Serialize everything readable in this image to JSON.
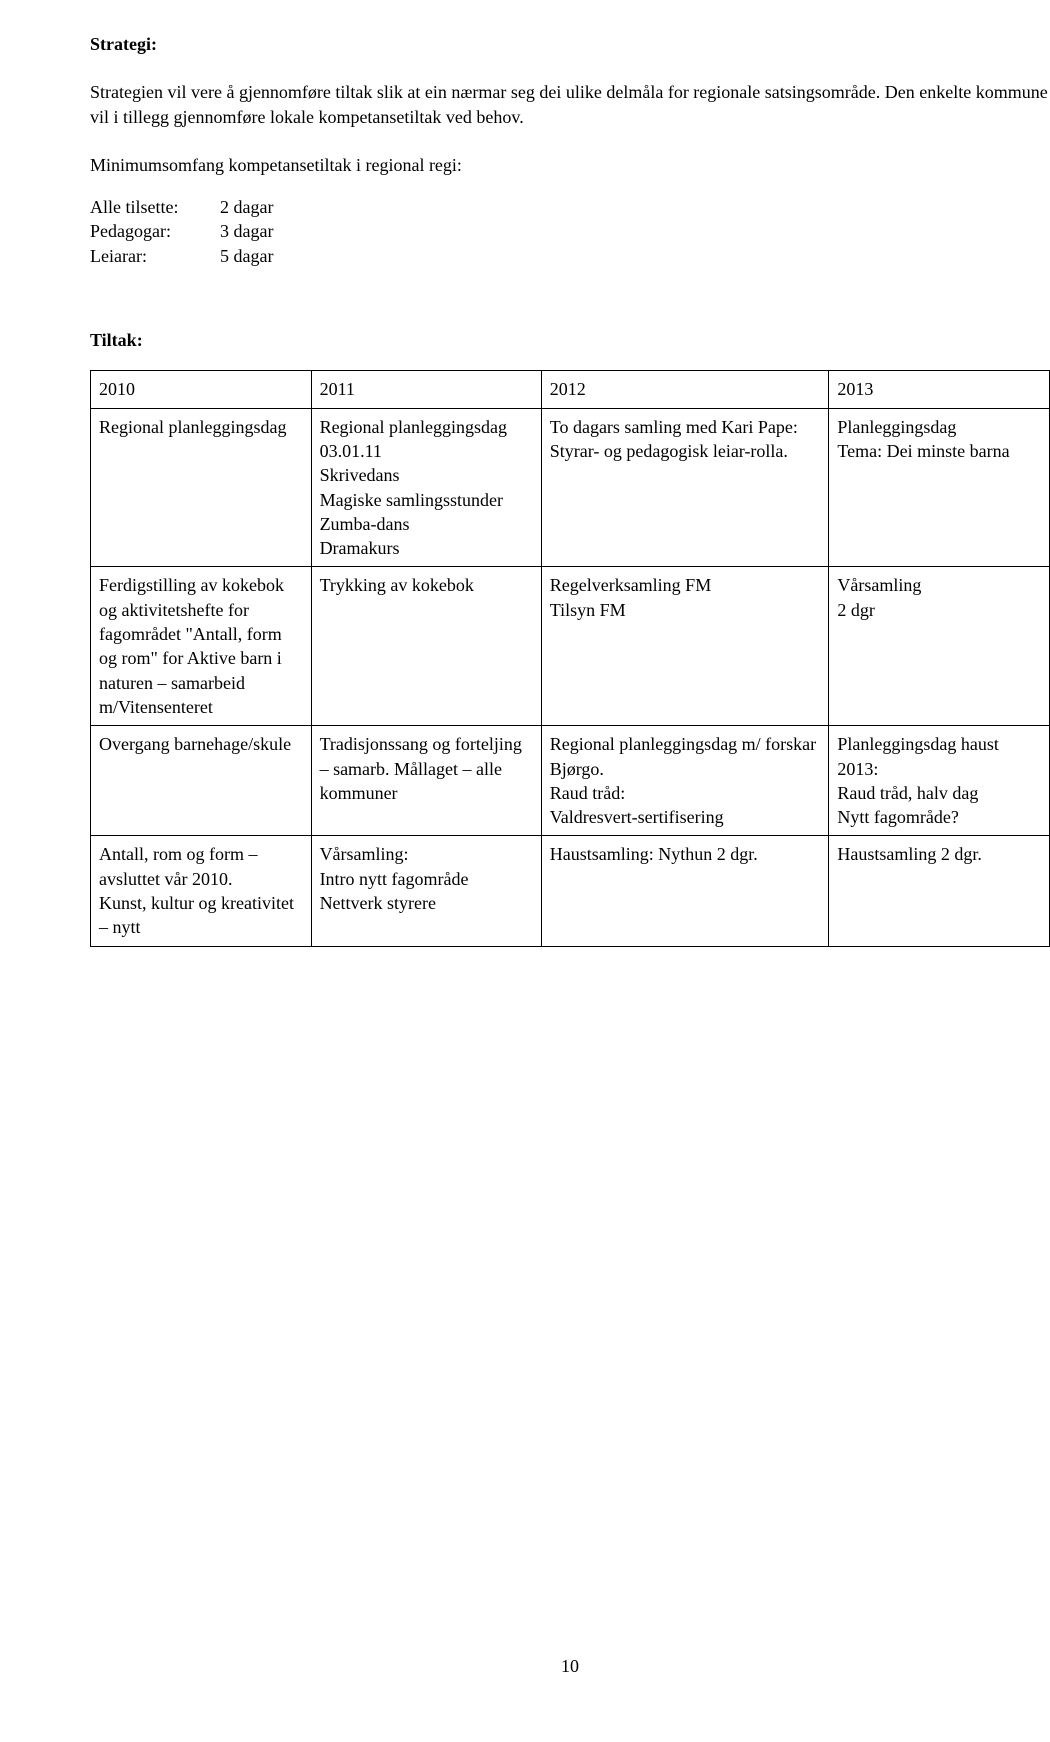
{
  "heading": "Strategi:",
  "intro_para": "Strategien vil vere å gjennomføre tiltak slik at ein nærmar seg dei ulike delmåla for regionale satsingsområde. Den enkelte kommune vil i tillegg gjennomføre lokale kompetansetiltak ved behov.",
  "minimum_heading": "Minimumsomfang kompetansetiltak i regional regi:",
  "kv": [
    {
      "key": "Alle tilsette:",
      "val": "2 dagar"
    },
    {
      "key": "Pedagogar:",
      "val": "3 dagar"
    },
    {
      "key": "Leiarar:",
      "val": "5 dagar"
    }
  ],
  "tiltak_heading": "Tiltak:",
  "table": {
    "headers": [
      "2010",
      "2011",
      "2012",
      "2013"
    ],
    "rows": [
      [
        "Regional planleggingsdag",
        "Regional planleggingsdag 03.01.11\nSkrivedans\nMagiske samlingsstunder\nZumba-dans\nDramakurs",
        "To dagars samling med Kari Pape:\nStyrar- og pedagogisk leiar-rolla.",
        "Planleggingsdag\nTema: Dei minste barna"
      ],
      [
        "Ferdigstilling av kokebok og aktivitetshefte for fagområdet \"Antall, form og rom\" for Aktive barn i naturen – samarbeid m/Vitensenteret",
        "Trykking av kokebok",
        "Regelverksamling FM\nTilsyn FM",
        "Vårsamling\n2 dgr"
      ],
      [
        "Overgang barnehage/skule",
        "Tradisjonssang og forteljing – samarb. Mållaget – alle kommuner",
        "Regional planleggingsdag m/ forskar Bjørgo.\nRaud tråd:\nValdresvert-sertifisering",
        "Planleggingsdag haust 2013:\nRaud tråd, halv dag\nNytt fagområde?"
      ],
      [
        "Antall, rom og form – avsluttet vår 2010.\nKunst, kultur og kreativitet – nytt",
        "Vårsamling:\nIntro nytt fagområde\nNettverk styrere",
        "Haustsamling: Nythun 2 dgr.",
        "Haustsamling 2 dgr."
      ]
    ]
  },
  "page_number": "10"
}
